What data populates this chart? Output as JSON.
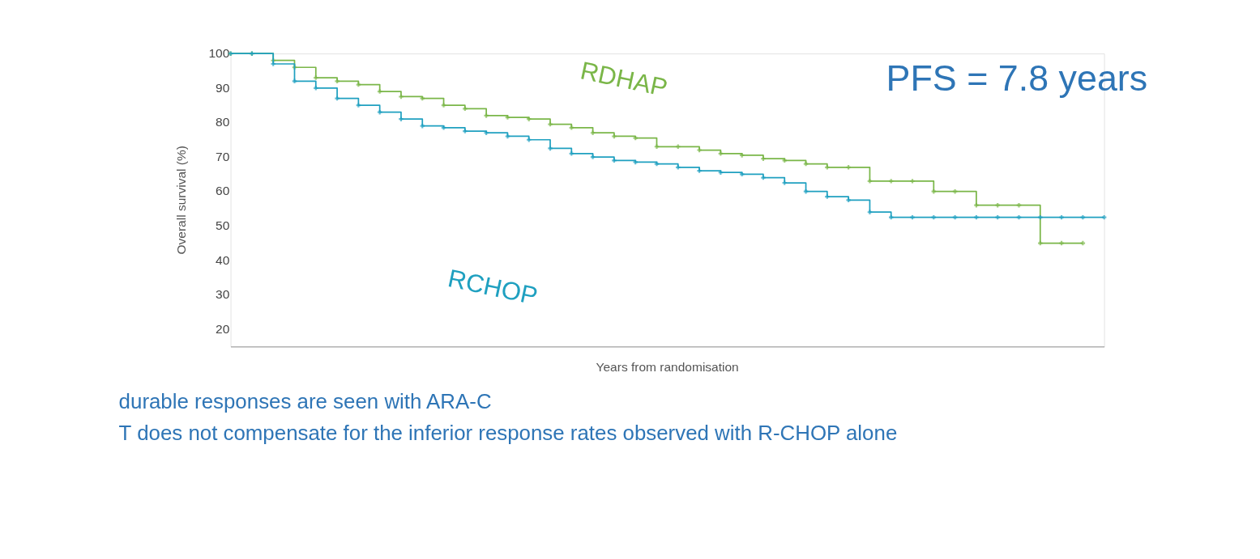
{
  "chart_data": {
    "type": "step",
    "ylabel": "Overall survival (%)",
    "xlabel": "Years from randomisation",
    "categories": [
      null,
      null,
      null,
      null,
      null,
      null,
      null,
      null,
      null,
      null,
      null,
      null,
      null,
      null,
      null,
      null,
      null,
      null,
      null,
      null,
      null,
      null,
      null,
      null,
      null,
      null,
      null,
      null,
      null,
      null,
      null,
      null,
      null,
      null,
      null,
      null,
      null,
      null,
      null,
      null,
      null,
      null
    ],
    "series": [
      {
        "name": "RDHAP",
        "color": "#7ab648",
        "values": [
          100,
          100,
          98,
          96,
          93,
          92,
          91,
          89,
          87.5,
          87,
          85,
          84,
          82,
          81.5,
          81,
          79.5,
          78.5,
          77,
          76,
          75.5,
          73,
          73,
          72,
          71,
          70.5,
          69.5,
          69,
          68,
          67,
          67,
          63,
          63,
          63,
          60,
          60,
          56,
          56,
          56,
          45,
          45,
          45,
          null
        ]
      },
      {
        "name": "RCHOP",
        "color": "#1fa0c0",
        "values": [
          100,
          100,
          97,
          92,
          90,
          87,
          85,
          83,
          81,
          79,
          78.5,
          77.5,
          77,
          76,
          75,
          72.5,
          71,
          70,
          69,
          68.5,
          68,
          67,
          66,
          65.5,
          65,
          64,
          62.5,
          60,
          58.5,
          57.5,
          54,
          52.5,
          52.5,
          52.5,
          52.5,
          52.5,
          52.5,
          52.5,
          52.5,
          52.5,
          52.5,
          52.5
        ]
      }
    ],
    "ylim": [
      15,
      100
    ],
    "yticks": [
      20,
      30,
      40,
      50,
      60,
      70,
      80,
      90,
      100
    ],
    "tick_labels": "y",
    "marker": "cross",
    "grid": false,
    "annotations": [
      "PFS = 7.8 years",
      "durable  responses are seen with ARA-C",
      "T does not compensate for the inferior response rates observed with R-CHOP alone"
    ]
  }
}
